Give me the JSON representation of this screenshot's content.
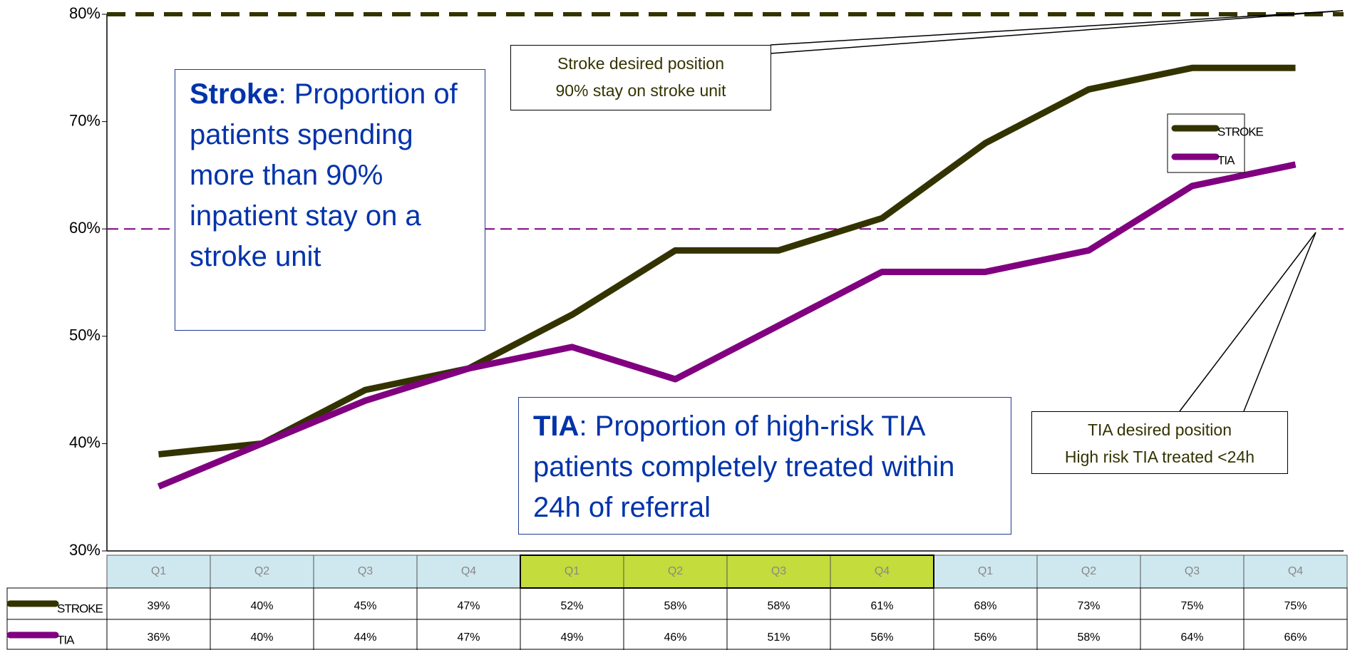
{
  "chart_data": {
    "type": "line",
    "categories": [
      "Q1",
      "Q2",
      "Q3",
      "Q4",
      "Q1",
      "Q2",
      "Q3",
      "Q4",
      "Q1",
      "Q2",
      "Q3",
      "Q4"
    ],
    "category_colors": [
      "#cfe8ef",
      "#cfe8ef",
      "#cfe8ef",
      "#cfe8ef",
      "#c4dc3c",
      "#c4dc3c",
      "#c4dc3c",
      "#c4dc3c",
      "#cfe8ef",
      "#cfe8ef",
      "#cfe8ef",
      "#cfe8ef"
    ],
    "series": [
      {
        "name": "STROKE",
        "color": "#333300",
        "values": [
          39,
          40,
          45,
          47,
          52,
          58,
          58,
          61,
          68,
          73,
          75,
          75
        ],
        "value_labels": [
          "39%",
          "40%",
          "45%",
          "47%",
          "52%",
          "58%",
          "58%",
          "61%",
          "68%",
          "73%",
          "75%",
          "75%"
        ]
      },
      {
        "name": "TIA",
        "color": "#800080",
        "values": [
          36,
          40,
          44,
          47,
          49,
          46,
          51,
          56,
          56,
          58,
          64,
          66
        ],
        "value_labels": [
          "36%",
          "40%",
          "44%",
          "47%",
          "49%",
          "46%",
          "51%",
          "56%",
          "56%",
          "58%",
          "64%",
          "66%"
        ]
      }
    ],
    "ylim": [
      30,
      80
    ],
    "yticks": [
      {
        "value": 30,
        "label": "30%"
      },
      {
        "value": 40,
        "label": "40%"
      },
      {
        "value": 50,
        "label": "50%"
      },
      {
        "value": 60,
        "label": "60%"
      },
      {
        "value": 70,
        "label": "70%"
      },
      {
        "value": 80,
        "label": "80%"
      }
    ],
    "targets": [
      {
        "value": 80,
        "color": "#333300"
      },
      {
        "value": 60,
        "color": "#800080"
      }
    ],
    "stroke_box": {
      "bold": "Stroke",
      "text": ": Proportion of patients spending more than 90% inpatient stay on a stroke unit"
    },
    "tia_box": {
      "bold": "TIA",
      "text": ": Proportion of high-risk TIA patients completely treated within 24h of referral"
    },
    "stroke_callout": [
      "Stroke desired position",
      "90% stay on stroke unit"
    ],
    "tia_callout": [
      "TIA desired position",
      "High risk TIA treated <24h"
    ]
  }
}
